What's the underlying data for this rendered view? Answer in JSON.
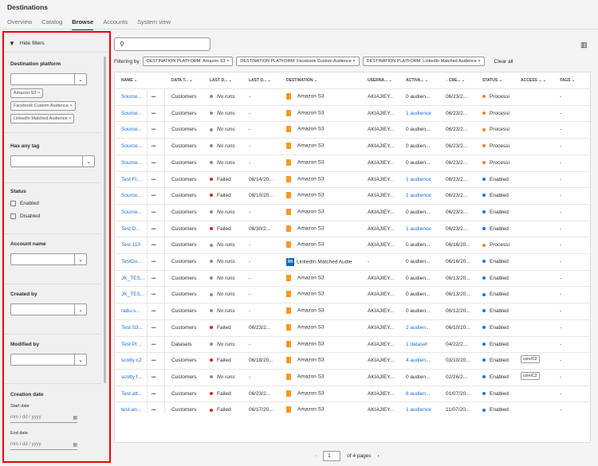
{
  "app": {
    "title": "Destinations"
  },
  "tabs": [
    {
      "label": "Overview"
    },
    {
      "label": "Catalog"
    },
    {
      "label": "Browse",
      "active": true
    },
    {
      "label": "Accounts"
    },
    {
      "label": "System view"
    }
  ],
  "sidebar": {
    "hide_filters": "Hide filters",
    "platform": {
      "label": "Destination platform",
      "tags": [
        "Amazon S3",
        "Facebook Custom Audience",
        "LinkedIn Matched Audience"
      ]
    },
    "has_tag": {
      "label": "Has any tag"
    },
    "status": {
      "label": "Status",
      "options": [
        "Enabled",
        "Disabled"
      ]
    },
    "account": {
      "label": "Account name"
    },
    "created_by": {
      "label": "Created by"
    },
    "modified_by": {
      "label": "Modified by"
    },
    "creation_date": {
      "label": "Creation date",
      "start_label": "Start date",
      "end_label": "End date",
      "placeholder": "mm / dd / yyyy"
    }
  },
  "filter_bar": {
    "label": "Filtering by",
    "chips": [
      "DESTINATION PLATFORM: Amazon S3",
      "DESTINATION PLATFORM: Facebook Custom Audience",
      "DESTINATION PLATFORM: LinkedIn Matched Audience"
    ],
    "clear": "Clear all"
  },
  "colors": {
    "link": "#1a6ecf",
    "failed": "#e02020",
    "no_runs": "#8e8e8e",
    "processing": "#e68619",
    "enabled": "#1473e6",
    "highlight": "#e00000"
  },
  "table": {
    "headers": [
      "NAME",
      "DATA T...",
      "LAST D...",
      "LAST D...",
      "DESTINATION",
      "USERNA...",
      "ACTIVA...",
      "CRE...",
      "STATUS",
      "ACCESS ...",
      "TAGS"
    ],
    "rows": [
      [
        "Source...",
        "Customers",
        "No runs",
        "-",
        "Amazon S3",
        "AKIAJIEY...",
        "0 audien...",
        "06/23/2...",
        "Processi",
        "",
        "-"
      ],
      [
        "Source...",
        "Customers",
        "No runs",
        "-",
        "Amazon S3",
        "AKIAJIEY...",
        "1 audience",
        "06/23/2...",
        "Processi",
        "",
        "-"
      ],
      [
        "Source...",
        "Customers",
        "No runs",
        "-",
        "Amazon S3",
        "AKIAJIEY...",
        "0 audien...",
        "06/23/2...",
        "Processi",
        "",
        "-"
      ],
      [
        "Source...",
        "Customers",
        "No runs",
        "-",
        "Amazon S3",
        "AKIAJIEY...",
        "0 audien...",
        "06/23/2...",
        "Processi",
        "",
        "-"
      ],
      [
        "Source...",
        "Customers",
        "No runs",
        "-",
        "Amazon S3",
        "AKIAJIEY...",
        "0 audien...",
        "06/23/2...",
        "Processi",
        "",
        "-"
      ],
      [
        "Test Fl...",
        "Customers",
        "Failed",
        "08/14/20...",
        "Amazon S3",
        "AKIAJIEY...",
        "1 audience",
        "06/23/2...",
        "Enabled",
        "",
        "-"
      ],
      [
        "Source...",
        "Customers",
        "Failed",
        "08/10/20...",
        "Amazon S3",
        "AKIAJIEY...",
        "1 audience",
        "06/23/2...",
        "Enabled",
        "",
        "-"
      ],
      [
        "Source...",
        "Customers",
        "No runs",
        "-",
        "Amazon S3",
        "AKIAJIEY...",
        "0 audien...",
        "06/23/2...",
        "Enabled",
        "",
        "-"
      ],
      [
        "Test D...",
        "Customers",
        "Failed",
        "06/30/2...",
        "Amazon S3",
        "AKIAJIEY...",
        "1 audience",
        "06/23/2...",
        "Enabled",
        "",
        "-"
      ],
      [
        "Test 110",
        "Customers",
        "No runs",
        "-",
        "Amazon S3",
        "AKIAJIEY...",
        "0 audien...",
        "06/16/20...",
        "Processi",
        "",
        "-"
      ],
      [
        "TestGo...",
        "Customers",
        "No runs",
        "-",
        "LinkedIn Matched Audie",
        "-",
        "0 audien...",
        "06/16/20...",
        "Enabled",
        "",
        "-"
      ],
      [
        "JK_TES...",
        "Customers",
        "No runs",
        "-",
        "Amazon S3",
        "AKIAJIEY...",
        "0 audien...",
        "06/13/20...",
        "Enabled",
        "",
        "-"
      ],
      [
        "JK_TES...",
        "Customers",
        "No runs",
        "-",
        "Amazon S3",
        "AKIAJIEY...",
        "0 audien...",
        "06/13/20...",
        "Enabled",
        "",
        "-"
      ],
      [
        "radu-s...",
        "Customers",
        "No runs",
        "-",
        "Amazon S3",
        "AKIAJIEY...",
        "0 audien...",
        "06/12/20...",
        "Enabled",
        "",
        "-"
      ],
      [
        "Test S3...",
        "Customers",
        "Failed",
        "06/23/2...",
        "Amazon S3",
        "AKIAJIEY...",
        "2 audien...",
        "06/10/20...",
        "Enabled",
        "",
        "-"
      ],
      [
        "Test Pr...",
        "Datasets",
        "No runs",
        "-",
        "Amazon S3",
        "AKIAJIEY...",
        "1 dataset",
        "04/22/2...",
        "Enabled",
        "",
        "-"
      ],
      [
        "scotty c2",
        "Customers",
        "Failed",
        "06/18/20...",
        "Amazon S3",
        "AKIAJIEY...",
        "4 audien...",
        "03/10/20...",
        "Enabled",
        "core/C2",
        "-"
      ],
      [
        "scotty f...",
        "Customers",
        "No runs",
        "-",
        "Amazon S3",
        "AKIAJIEY...",
        "0 audien...",
        "02/26/2...",
        "Enabled",
        "core/C2",
        "-"
      ],
      [
        "Test att...",
        "Customers",
        "Failed",
        "06/23/2...",
        "Amazon S3",
        "AKIAJIEY...",
        "6 audien...",
        "01/07/20...",
        "Enabled",
        "",
        "-"
      ],
      [
        "test-an...",
        "Customers",
        "Failed",
        "06/17/20...",
        "Amazon S3",
        "AKIAJIEY...",
        "1 audience",
        "11/07/20...",
        "Enabled",
        "",
        "-"
      ]
    ]
  },
  "pagination": {
    "page": "1",
    "of_pages": "of 4 pages"
  }
}
